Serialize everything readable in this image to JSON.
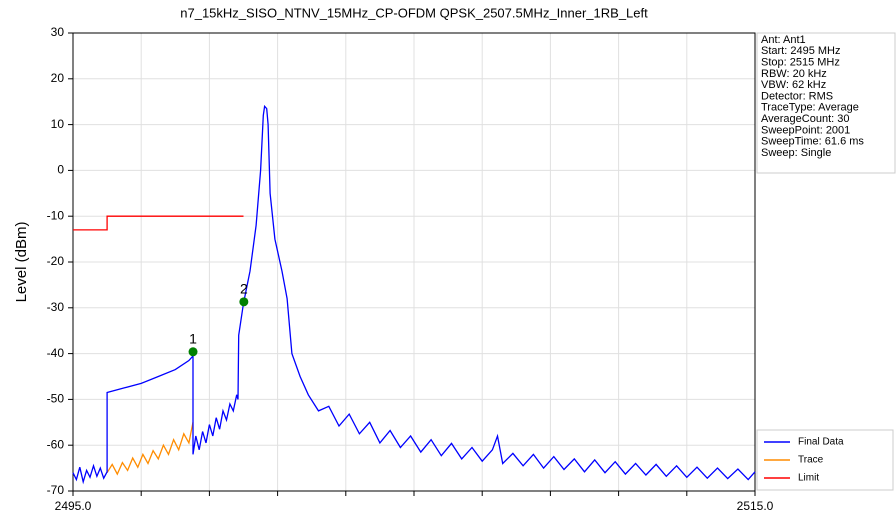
{
  "chart_data": {
    "type": "line",
    "title": "n7_15kHz_SISO_NTNV_15MHz_CP-OFDM QPSK_2507.5MHz_Inner_1RB_Left",
    "y_label": "Level (dBm)",
    "xlim": [
      2495,
      2515
    ],
    "ylim": [
      -70,
      30
    ],
    "xticks": [
      {
        "value": 2495,
        "label": "2495.0"
      },
      {
        "value": 2497,
        "label": null
      },
      {
        "value": 2499,
        "label": null
      },
      {
        "value": 2501,
        "label": null
      },
      {
        "value": 2503,
        "label": null
      },
      {
        "value": 2505,
        "label": null
      },
      {
        "value": 2507,
        "label": null
      },
      {
        "value": 2509,
        "label": null
      },
      {
        "value": 2511,
        "label": null
      },
      {
        "value": 2513,
        "label": null
      },
      {
        "value": 2515,
        "label": "2515.0"
      }
    ],
    "yticks": [
      30,
      20,
      10,
      0,
      -10,
      -20,
      -30,
      -40,
      -50,
      -60,
      -70
    ],
    "grid": true,
    "legend": "lower right",
    "info": [
      "Ant: Ant1",
      "Start: 2495 MHz",
      "Stop: 2515 MHz",
      "RBW: 20 kHz",
      "VBW: 62 kHz",
      "Detector: RMS",
      "TraceType: Average",
      "AverageCount: 30",
      "SweepPoint: 2001",
      "SweepTime: 61.6 ms",
      "Sweep: Single"
    ],
    "series": [
      {
        "name": "Final Data",
        "color": "#0000ff",
        "x": [
          2495.0,
          2495.1,
          2495.2,
          2495.3,
          2495.4,
          2495.5,
          2495.6,
          2495.7,
          2495.8,
          2495.9,
          2496.0,
          2496.0,
          2496.5,
          2497.0,
          2497.5,
          2498.0,
          2498.4,
          2498.52,
          2498.52,
          2498.6,
          2498.7,
          2498.8,
          2498.9,
          2499.0,
          2499.1,
          2499.2,
          2499.3,
          2499.4,
          2499.5,
          2499.6,
          2499.7,
          2499.8,
          2499.84,
          2499.86,
          2500.0,
          2500.19,
          2500.37,
          2500.5,
          2500.58,
          2500.62,
          2500.68,
          2500.72,
          2500.78,
          2500.92,
          2501.13,
          2501.28,
          2501.42,
          2501.66,
          2501.9,
          2502.2,
          2502.5,
          2502.8,
          2503.1,
          2503.4,
          2503.7,
          2504.0,
          2504.3,
          2504.6,
          2504.9,
          2505.2,
          2505.5,
          2505.8,
          2506.1,
          2506.4,
          2506.7,
          2507.0,
          2507.3,
          2507.45,
          2507.6,
          2507.9,
          2508.2,
          2508.5,
          2508.8,
          2509.1,
          2509.4,
          2509.7,
          2510.0,
          2510.3,
          2510.6,
          2510.9,
          2511.2,
          2511.5,
          2511.8,
          2512.1,
          2512.4,
          2512.7,
          2513.0,
          2513.3,
          2513.6,
          2513.9,
          2514.2,
          2514.5,
          2514.8,
          2515.0
        ],
        "values": [
          -66,
          -67.5,
          -64.8,
          -68,
          -65.5,
          -67,
          -64.5,
          -66.8,
          -65,
          -67.2,
          -65.8,
          -48.5,
          -47.5,
          -46.5,
          -45,
          -43.5,
          -41.5,
          -40.5,
          -62,
          -58,
          -61,
          -57,
          -59.5,
          -55.5,
          -58,
          -54,
          -56.5,
          -52.5,
          -54.5,
          -51,
          -52.5,
          -49,
          -50,
          -36,
          -29,
          -22,
          -12,
          0,
          12,
          14,
          13.5,
          10,
          -5,
          -15,
          -22,
          -28,
          -40,
          -45,
          -49,
          -52.5,
          -51.5,
          -55.8,
          -53.2,
          -57.5,
          -55,
          -59.5,
          -56.8,
          -60.5,
          -58,
          -61.5,
          -58.8,
          -62.3,
          -59.6,
          -63,
          -60.5,
          -63.5,
          -61,
          -58,
          -64,
          -61.8,
          -64.5,
          -62,
          -65,
          -62.5,
          -65.3,
          -63,
          -65.8,
          -63.2,
          -66,
          -63.6,
          -66.3,
          -64,
          -66.5,
          -64.2,
          -66.8,
          -64.5,
          -67,
          -64.8,
          -67.2,
          -65,
          -67.3,
          -65.2,
          -67.5,
          -65.8
        ]
      },
      {
        "name": "Trace",
        "color": "#ff8c00",
        "x": [
          2496.0,
          2496.15,
          2496.3,
          2496.45,
          2496.6,
          2496.75,
          2496.9,
          2497.05,
          2497.2,
          2497.35,
          2497.5,
          2497.65,
          2497.8,
          2497.95,
          2498.1,
          2498.25,
          2498.4,
          2498.52
        ],
        "values": [
          -66,
          -64.2,
          -66.3,
          -63.8,
          -65.5,
          -62.8,
          -64.8,
          -62,
          -64,
          -61.2,
          -63,
          -60,
          -62,
          -58.8,
          -61,
          -57.5,
          -59.5,
          -55
        ]
      },
      {
        "name": "Limit",
        "color": "#ff0000",
        "x": [
          2495,
          2496,
          2496,
          2500
        ],
        "values": [
          -13,
          -13,
          -10,
          -10
        ]
      }
    ],
    "markers": {
      "color": "#008000",
      "labels": [
        "1",
        "2"
      ],
      "x": [
        2498.52,
        2500.01
      ],
      "values": [
        -39.6,
        -28.7
      ]
    }
  }
}
